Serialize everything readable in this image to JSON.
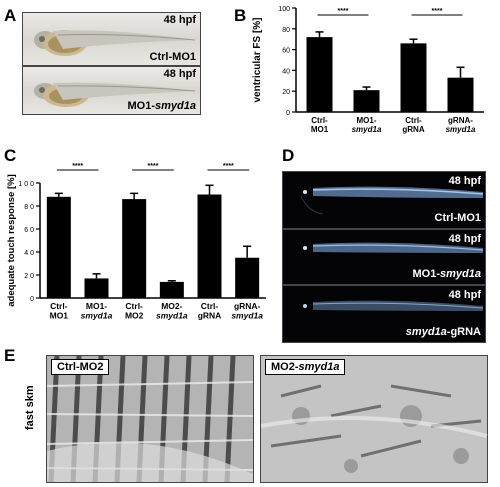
{
  "panels": {
    "A": {
      "letter": "A",
      "images": [
        {
          "stage": "48 hpf",
          "label_main": "Ctrl-MO1",
          "label_italic": ""
        },
        {
          "stage": "48 hpf",
          "label_main": "MO1-",
          "label_italic": "smyd1a"
        }
      ]
    },
    "B": {
      "letter": "B"
    },
    "C": {
      "letter": "C"
    },
    "D": {
      "letter": "D",
      "images": [
        {
          "stage": "48 hpf",
          "label_main": "Ctrl-MO1",
          "label_italic": "",
          "italic_first": false
        },
        {
          "stage": "48 hpf",
          "label_main": "MO1-",
          "label_italic": "smyd1a",
          "italic_first": false
        },
        {
          "stage": "48 hpf",
          "label_main": "-gRNA",
          "label_italic": "smyd1a",
          "italic_first": true
        }
      ]
    },
    "E": {
      "letter": "E",
      "row_label": "fast skm",
      "images": [
        {
          "label_main": "Ctrl-MO2",
          "label_italic": ""
        },
        {
          "label_main": "MO2-",
          "label_italic": "smyd1a"
        }
      ]
    }
  },
  "chart_data": [
    {
      "panel": "B",
      "type": "bar",
      "categories": [
        {
          "line1": "Ctrl-",
          "line2": "MO1",
          "italic2": false
        },
        {
          "line1": "MO1-",
          "line2": "smyd1a",
          "italic2": true
        },
        {
          "line1": "Ctrl-",
          "line2": "gRNA",
          "italic2": false
        },
        {
          "line1": "gRNA-",
          "line2": "smyd1a",
          "italic2": true
        }
      ],
      "values": [
        72,
        21,
        66,
        33
      ],
      "errors": [
        5,
        3,
        4,
        10
      ],
      "ylabel": "ventricular FS [%]",
      "ylim": [
        0,
        100
      ],
      "yticks": [
        "0",
        "20",
        "40",
        "60",
        "80",
        "100"
      ],
      "bar_color": "#000000",
      "significance": [
        {
          "from": 0,
          "to": 1,
          "label": "****"
        },
        {
          "from": 2,
          "to": 3,
          "label": "****"
        }
      ]
    },
    {
      "panel": "C",
      "type": "bar",
      "categories": [
        {
          "line1": "Ctrl-",
          "line2": "MO1",
          "italic2": false
        },
        {
          "line1": "MO1-",
          "line2": "smyd1a",
          "italic2": true
        },
        {
          "line1": "Ctrl-",
          "line2": "MO2",
          "italic2": false
        },
        {
          "line1": "MO2-",
          "line2": "smyd1a",
          "italic2": true
        },
        {
          "line1": "Ctrl-",
          "line2": "gRNA",
          "italic2": false
        },
        {
          "line1": "gRNA-",
          "line2": "smyd1a",
          "italic2": true
        }
      ],
      "values": [
        88,
        17,
        86,
        14,
        90,
        35
      ],
      "errors": [
        3,
        4,
        5,
        1,
        8,
        10
      ],
      "ylabel": "adequate touch response [%]",
      "ylim": [
        0,
        100
      ],
      "yticks": [
        "0",
        "2 0",
        "4 0",
        "6 0",
        "8 0",
        "1 0 0"
      ],
      "bar_color": "#000000",
      "significance": [
        {
          "from": 0,
          "to": 1,
          "label": "****"
        },
        {
          "from": 2,
          "to": 3,
          "label": "****"
        },
        {
          "from": 4,
          "to": 5,
          "label": "****"
        }
      ]
    }
  ]
}
